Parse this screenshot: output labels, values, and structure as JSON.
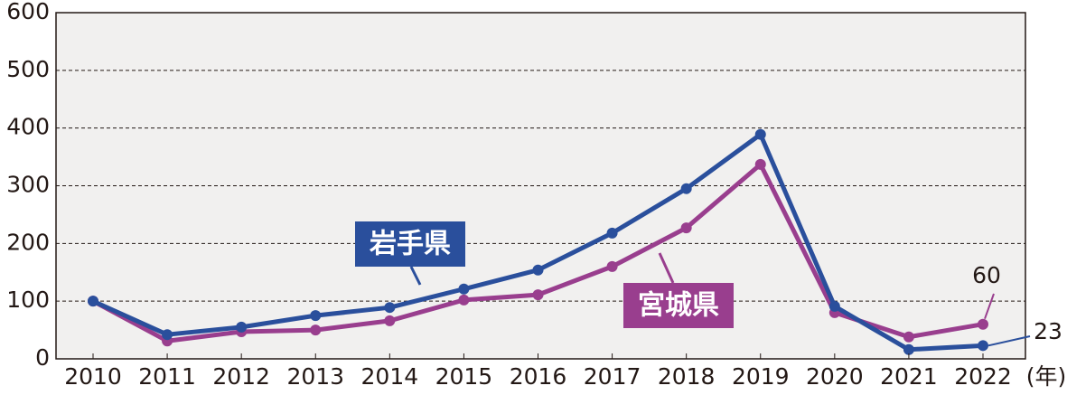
{
  "chart_data": {
    "type": "line",
    "categories": [
      "2010",
      "2011",
      "2012",
      "2013",
      "2014",
      "2015",
      "2016",
      "2017",
      "2018",
      "2019",
      "2020",
      "2021",
      "2022"
    ],
    "x_label": "(年)",
    "ylim": [
      0,
      600
    ],
    "yticks": [
      0,
      100,
      200,
      300,
      400,
      500,
      600
    ],
    "grid": true,
    "series": [
      {
        "name": "岩手県",
        "color": "#2a4f9c",
        "values": [
          100,
          42,
          55,
          75,
          89,
          121,
          154,
          218,
          295,
          389,
          91,
          16,
          23
        ]
      },
      {
        "name": "宮城県",
        "color": "#993e8e",
        "values": [
          100,
          31,
          47,
          50,
          66,
          102,
          111,
          160,
          227,
          337,
          80,
          38,
          60
        ]
      }
    ]
  }
}
